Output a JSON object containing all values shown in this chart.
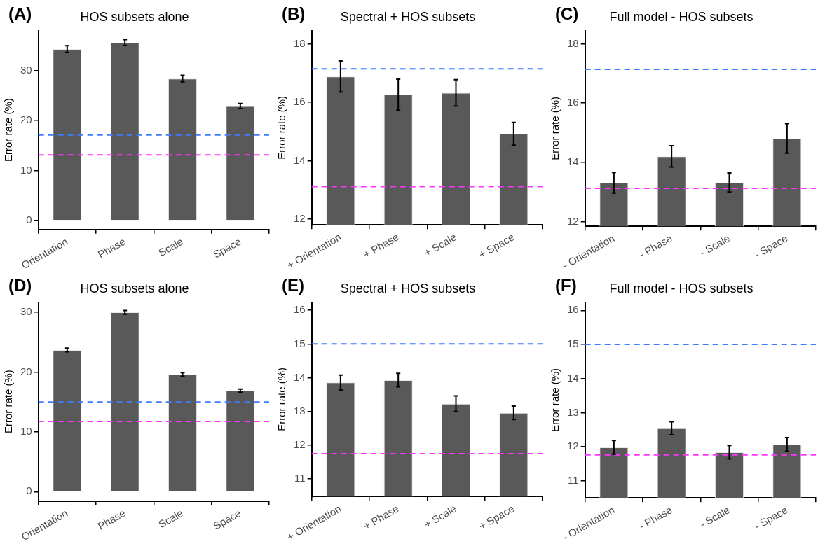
{
  "chart_data": [
    {
      "type": "bar",
      "title": "HOS subsets alone",
      "annotations": [
        "(A)"
      ],
      "ylabel": "Error rate (%)",
      "categories": [
        "Orientation",
        "Phase",
        "Scale",
        "Space"
      ],
      "values": [
        34.3,
        35.6,
        28.4,
        22.9
      ],
      "errors": [
        0.65,
        0.6,
        0.65,
        0.5
      ],
      "color": "#595959",
      "ylim": [
        -1.8,
        38
      ],
      "yticks": [
        0,
        10,
        20,
        30
      ],
      "grid": false,
      "ref_lines": [
        {
          "axis": "y",
          "value": 17.1,
          "color": "#3d7bff",
          "line_style": "dashed"
        },
        {
          "axis": "y",
          "value": 13.1,
          "color": "#ff33ff",
          "line_style": "dashed"
        }
      ]
    },
    {
      "type": "bar",
      "title": "Spectral + HOS subsets",
      "annotations": [
        "(B)"
      ],
      "ylabel": "Error rate (%)",
      "categories": [
        "+ Orientation",
        "+ Phase",
        "+ Scale",
        "+ Space"
      ],
      "values": [
        16.88,
        16.26,
        16.32,
        14.92
      ],
      "errors": [
        0.53,
        0.53,
        0.45,
        0.39
      ],
      "color": "#595959",
      "ylim": [
        11.8,
        18.45
      ],
      "yticks": [
        12,
        14,
        16,
        18
      ],
      "grid": false,
      "ref_lines": [
        {
          "axis": "y",
          "value": 17.14,
          "color": "#3d7bff",
          "line_style": "dashed"
        },
        {
          "axis": "y",
          "value": 13.11,
          "color": "#ff33ff",
          "line_style": "dashed"
        }
      ]
    },
    {
      "type": "bar",
      "title": "Full model - HOS subsets",
      "annotations": [
        "(C)"
      ],
      "ylabel": "Error rate (%)",
      "categories": [
        "- Orientation",
        "- Phase",
        "- Scale",
        "- Space"
      ],
      "values": [
        13.31,
        14.2,
        13.32,
        14.81
      ],
      "errors": [
        0.35,
        0.36,
        0.32,
        0.5
      ],
      "color": "#595959",
      "ylim": [
        11.84,
        18.45
      ],
      "yticks": [
        12,
        14,
        16,
        18
      ],
      "grid": false,
      "ref_lines": [
        {
          "axis": "y",
          "value": 17.14,
          "color": "#3d7bff",
          "line_style": "dashed"
        },
        {
          "axis": "y",
          "value": 13.12,
          "color": "#ff33ff",
          "line_style": "dashed"
        }
      ]
    },
    {
      "type": "bar",
      "title": "HOS subsets alone",
      "annotations": [
        "(D)"
      ],
      "ylabel": "Error rate (%)",
      "categories": [
        "Orientation",
        "Phase",
        "Scale",
        "Space"
      ],
      "values": [
        23.7,
        30.0,
        19.6,
        16.9
      ],
      "errors": [
        0.3,
        0.3,
        0.3,
        0.25
      ],
      "color": "#595959",
      "ylim": [
        -1.57,
        31.7
      ],
      "yticks": [
        0,
        10,
        20,
        30
      ],
      "grid": false,
      "ref_lines": [
        {
          "axis": "y",
          "value": 15.0,
          "color": "#3d7bff",
          "line_style": "dashed"
        },
        {
          "axis": "y",
          "value": 11.74,
          "color": "#ff33ff",
          "line_style": "dashed"
        }
      ]
    },
    {
      "type": "bar",
      "title": "Spectral + HOS subsets",
      "annotations": [
        "(E)"
      ],
      "ylabel": "Error rate (%)",
      "categories": [
        "+ Orientation",
        "+ Phase",
        "+ Scale",
        "+ Space"
      ],
      "values": [
        13.86,
        13.93,
        13.23,
        12.96
      ],
      "errors": [
        0.22,
        0.2,
        0.23,
        0.2
      ],
      "color": "#595959",
      "ylim": [
        10.48,
        16.24
      ],
      "yticks": [
        11,
        12,
        13,
        14,
        15,
        16
      ],
      "grid": false,
      "ref_lines": [
        {
          "axis": "y",
          "value": 15.0,
          "color": "#3d7bff",
          "line_style": "dashed"
        },
        {
          "axis": "y",
          "value": 11.75,
          "color": "#ff33ff",
          "line_style": "dashed"
        }
      ]
    },
    {
      "type": "bar",
      "title": "Full model - HOS subsets",
      "annotations": [
        "(F)"
      ],
      "ylabel": "Error rate (%)",
      "categories": [
        "- Orientation",
        "- Phase",
        "- Scale",
        "- Space"
      ],
      "values": [
        11.98,
        12.54,
        11.84,
        12.07
      ],
      "errors": [
        0.2,
        0.19,
        0.2,
        0.2
      ],
      "color": "#595959",
      "ylim": [
        10.5,
        16.24
      ],
      "yticks": [
        11,
        12,
        13,
        14,
        15,
        16
      ],
      "grid": false,
      "ref_lines": [
        {
          "axis": "y",
          "value": 15.0,
          "color": "#3d7bff",
          "line_style": "dashed"
        },
        {
          "axis": "y",
          "value": 11.76,
          "color": "#ff33ff",
          "line_style": "dashed"
        }
      ]
    }
  ]
}
